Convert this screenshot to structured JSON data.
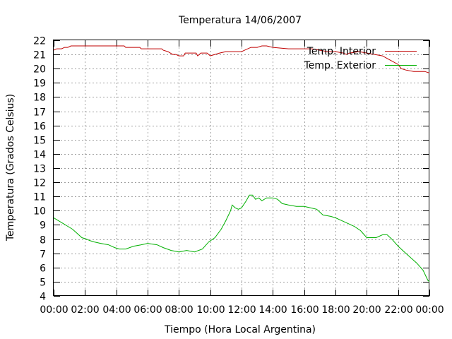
{
  "chart_data": {
    "type": "line",
    "title": "Temperatura 14/06/2007",
    "xlabel": "Tiempo (Hora Local Argentina)",
    "ylabel": "Temperatura (Grados Celsius)",
    "xlim": [
      0,
      24
    ],
    "ylim": [
      4,
      22
    ],
    "x_ticks": [
      0,
      2,
      4,
      6,
      8,
      10,
      12,
      14,
      16,
      18,
      20,
      22,
      24
    ],
    "x_tick_labels": [
      "00:00",
      "02:00",
      "04:00",
      "06:00",
      "08:00",
      "10:00",
      "12:00",
      "14:00",
      "16:00",
      "18:00",
      "20:00",
      "22:00",
      "00:00"
    ],
    "y_ticks": [
      4,
      5,
      6,
      7,
      8,
      9,
      10,
      11,
      12,
      13,
      14,
      15,
      16,
      17,
      18,
      19,
      20,
      21,
      22
    ],
    "grid": true,
    "legend_position": "top-right",
    "series": [
      {
        "name": "Temp. Interior",
        "color": "#c00000",
        "points": [
          [
            0,
            21.3
          ],
          [
            0.2,
            21.4
          ],
          [
            0.5,
            21.4
          ],
          [
            0.7,
            21.5
          ],
          [
            0.9,
            21.5
          ],
          [
            1.1,
            21.6
          ],
          [
            1.5,
            21.6
          ],
          [
            3,
            21.6
          ],
          [
            4.2,
            21.6
          ],
          [
            4.5,
            21.6
          ],
          [
            4.6,
            21.5
          ],
          [
            5.5,
            21.5
          ],
          [
            5.6,
            21.4
          ],
          [
            6.9,
            21.4
          ],
          [
            7,
            21.3
          ],
          [
            7.3,
            21.2
          ],
          [
            7.6,
            21
          ],
          [
            7.8,
            21
          ],
          [
            8,
            20.9
          ],
          [
            8.3,
            20.9
          ],
          [
            8.4,
            21.1
          ],
          [
            9.1,
            21.1
          ],
          [
            9.2,
            20.9
          ],
          [
            9.4,
            21.1
          ],
          [
            9.8,
            21.1
          ],
          [
            10,
            20.9
          ],
          [
            10.3,
            21
          ],
          [
            10.6,
            21.1
          ],
          [
            11,
            21.2
          ],
          [
            12,
            21.2
          ],
          [
            12.2,
            21.3
          ],
          [
            12.6,
            21.5
          ],
          [
            13,
            21.5
          ],
          [
            13.3,
            21.6
          ],
          [
            13.6,
            21.6
          ],
          [
            14,
            21.5
          ],
          [
            15,
            21.4
          ],
          [
            16.5,
            21.4
          ],
          [
            17,
            21.3
          ],
          [
            17.5,
            21.2
          ],
          [
            18,
            21.2
          ],
          [
            18.5,
            21.1
          ],
          [
            18.7,
            21
          ],
          [
            18.9,
            21.1
          ],
          [
            19.5,
            21.2
          ],
          [
            20,
            21.1
          ],
          [
            20.5,
            21
          ],
          [
            21,
            20.9
          ],
          [
            21.5,
            20.6
          ],
          [
            22,
            20.3
          ],
          [
            22.2,
            20
          ],
          [
            22.5,
            19.9
          ],
          [
            23,
            19.8
          ],
          [
            23.7,
            19.8
          ],
          [
            24,
            19.7
          ]
        ]
      },
      {
        "name": "Temp. Exterior",
        "color": "#00b000",
        "points": [
          [
            0,
            9.5
          ],
          [
            0.3,
            9.3
          ],
          [
            0.6,
            9.1
          ],
          [
            0.9,
            8.9
          ],
          [
            1.2,
            8.7
          ],
          [
            1.5,
            8.4
          ],
          [
            1.8,
            8.1
          ],
          [
            2.1,
            8
          ],
          [
            2.3,
            7.9
          ],
          [
            2.6,
            7.8
          ],
          [
            3,
            7.7
          ],
          [
            3.5,
            7.6
          ],
          [
            3.9,
            7.4
          ],
          [
            4.2,
            7.3
          ],
          [
            4.6,
            7.3
          ],
          [
            5.1,
            7.5
          ],
          [
            5.6,
            7.6
          ],
          [
            6,
            7.7
          ],
          [
            6.6,
            7.6
          ],
          [
            7,
            7.4
          ],
          [
            7.5,
            7.2
          ],
          [
            8,
            7.1
          ],
          [
            8.5,
            7.2
          ],
          [
            9,
            7.1
          ],
          [
            9.5,
            7.3
          ],
          [
            9.9,
            7.8
          ],
          [
            10.3,
            8.1
          ],
          [
            10.7,
            8.7
          ],
          [
            11,
            9.3
          ],
          [
            11.3,
            10
          ],
          [
            11.4,
            10.4
          ],
          [
            11.6,
            10.2
          ],
          [
            11.8,
            10.1
          ],
          [
            12,
            10.2
          ],
          [
            12.3,
            10.7
          ],
          [
            12.5,
            11.1
          ],
          [
            12.7,
            11.1
          ],
          [
            12.9,
            10.8
          ],
          [
            13.1,
            10.9
          ],
          [
            13.3,
            10.7
          ],
          [
            13.6,
            10.9
          ],
          [
            14,
            10.9
          ],
          [
            14.3,
            10.8
          ],
          [
            14.6,
            10.5
          ],
          [
            15,
            10.4
          ],
          [
            15.5,
            10.3
          ],
          [
            16,
            10.3
          ],
          [
            16.4,
            10.2
          ],
          [
            16.8,
            10.1
          ],
          [
            17.2,
            9.7
          ],
          [
            17.7,
            9.6
          ],
          [
            18,
            9.5
          ],
          [
            18.4,
            9.3
          ],
          [
            18.8,
            9.1
          ],
          [
            19.2,
            8.9
          ],
          [
            19.6,
            8.6
          ],
          [
            20,
            8.1
          ],
          [
            20.6,
            8.1
          ],
          [
            21,
            8.3
          ],
          [
            21.3,
            8.3
          ],
          [
            21.6,
            8
          ],
          [
            22,
            7.5
          ],
          [
            22.4,
            7.1
          ],
          [
            22.8,
            6.7
          ],
          [
            23.2,
            6.3
          ],
          [
            23.6,
            5.8
          ],
          [
            23.9,
            5.1
          ],
          [
            24,
            5
          ]
        ]
      }
    ]
  }
}
